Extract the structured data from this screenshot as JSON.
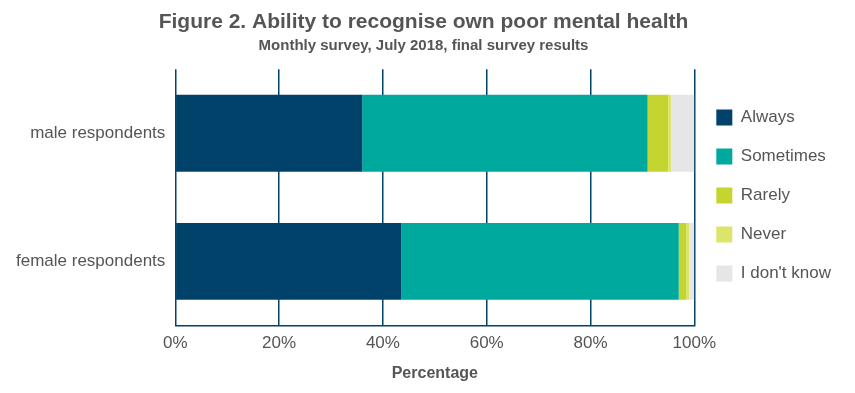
{
  "chart_data": {
    "type": "bar",
    "title": "Figure 2. Ability to recognise own poor mental health",
    "subtitle": "Monthly survey, July 2018, final survey results",
    "xlabel": "Percentage",
    "orientation": "horizontal",
    "stacked": true,
    "grid": true,
    "legend": "right",
    "categories": [
      "male respondents",
      "female respondents"
    ],
    "series": [
      {
        "name": "Always",
        "color": "#00426a",
        "values": [
          36,
          43.5
        ]
      },
      {
        "name": "Sometimes",
        "color": "#00a99d",
        "values": [
          55,
          53.5
        ]
      },
      {
        "name": "Rarely",
        "color": "#c5d52f",
        "values": [
          4,
          1.5
        ]
      },
      {
        "name": "Never",
        "color": "#dde46a",
        "values": [
          0.5,
          0.5
        ]
      },
      {
        "name": "I don't know",
        "color": "#e6e6e6",
        "values": [
          4.5,
          1
        ]
      }
    ],
    "xlim": [
      0,
      100
    ],
    "xticks": [
      {
        "value": 0,
        "label": "0%"
      },
      {
        "value": 20,
        "label": "20%"
      },
      {
        "value": 40,
        "label": "40%"
      },
      {
        "value": 60,
        "label": "60%"
      },
      {
        "value": 80,
        "label": "80%"
      },
      {
        "value": 100,
        "label": "100%"
      }
    ]
  }
}
